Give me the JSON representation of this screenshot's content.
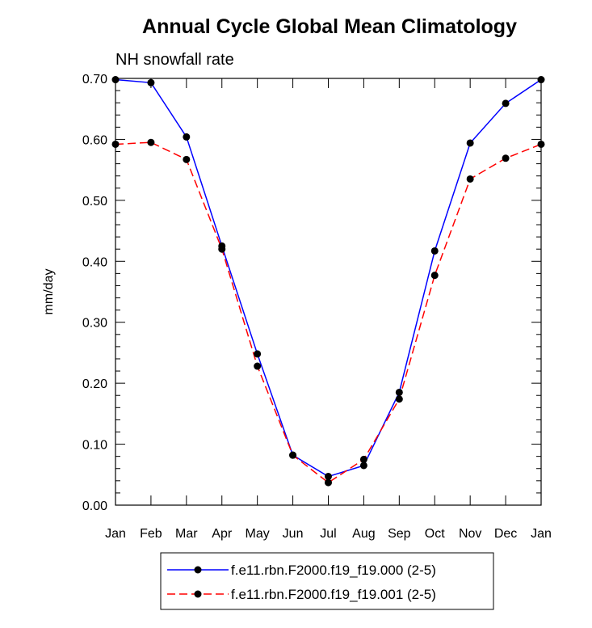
{
  "chart_data": {
    "type": "line",
    "title": "Annual Cycle Global Mean Climatology",
    "subtitle": "NH snowfall rate",
    "xlabel": "",
    "ylabel": "mm/day",
    "ylim": [
      0.0,
      0.7
    ],
    "yticks": [
      "0.00",
      "0.10",
      "0.20",
      "0.30",
      "0.40",
      "0.50",
      "0.60",
      "0.70"
    ],
    "categories": [
      "Jan",
      "Feb",
      "Mar",
      "Apr",
      "May",
      "Jun",
      "Jul",
      "Aug",
      "Sep",
      "Oct",
      "Nov",
      "Dec",
      "Jan"
    ],
    "series": [
      {
        "name": "f.e11.rbn.F2000.f19_f19.000 (2-5)",
        "color": "#0000ff",
        "dash": "solid",
        "values": [
          0.698,
          0.693,
          0.604,
          0.425,
          0.248,
          0.082,
          0.047,
          0.065,
          0.185,
          0.417,
          0.594,
          0.659,
          0.698
        ]
      },
      {
        "name": "f.e11.rbn.F2000.f19_f19.001 (2-5)",
        "color": "#ff0000",
        "dash": "dashed",
        "values": [
          0.592,
          0.595,
          0.567,
          0.42,
          0.228,
          0.082,
          0.037,
          0.075,
          0.174,
          0.377,
          0.535,
          0.569,
          0.592
        ]
      }
    ],
    "legend": "bottom-center",
    "grid": false
  }
}
